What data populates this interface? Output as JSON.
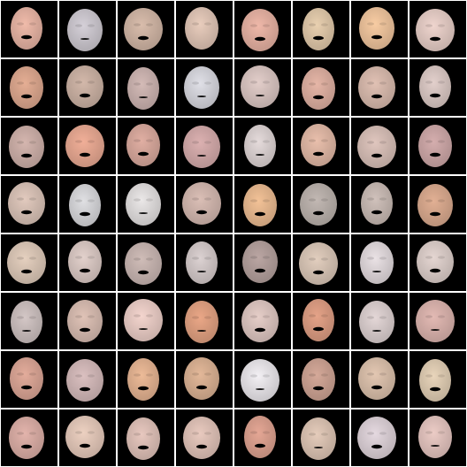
{
  "grid": {
    "columns": 8,
    "rows": 8,
    "background_color": "#000000",
    "separator_color": "#ffffff",
    "tiles": [
      {
        "skin": "#e2b0a0",
        "mouth": "open"
      },
      {
        "skin": "#c9c4cc",
        "mouth": "closed"
      },
      {
        "skin": "#cdb2a2",
        "mouth": "open"
      },
      {
        "skin": "#dcc1b2",
        "mouth": "none"
      },
      {
        "skin": "#e1ae9f",
        "mouth": "open"
      },
      {
        "skin": "#dcc4a6",
        "mouth": "open"
      },
      {
        "skin": "#eac09a",
        "mouth": "open"
      },
      {
        "skin": "#e1c9c2",
        "mouth": "open"
      },
      {
        "skin": "#d8a48c",
        "mouth": "open"
      },
      {
        "skin": "#c7aea0",
        "mouth": "open"
      },
      {
        "skin": "#c8b0ad",
        "mouth": "closed"
      },
      {
        "skin": "#d3d3da",
        "mouth": "closed"
      },
      {
        "skin": "#d6c2bf",
        "mouth": "closed"
      },
      {
        "skin": "#d9ac9e",
        "mouth": "open"
      },
      {
        "skin": "#d4b6aa",
        "mouth": "open"
      },
      {
        "skin": "#d6c4c0",
        "mouth": "open"
      },
      {
        "skin": "#c9aca5",
        "mouth": "open"
      },
      {
        "skin": "#e3a58f",
        "mouth": "open"
      },
      {
        "skin": "#d4a59a",
        "mouth": "open"
      },
      {
        "skin": "#d0a7a7",
        "mouth": "closed"
      },
      {
        "skin": "#d8cfcf",
        "mouth": "closed"
      },
      {
        "skin": "#dcb4a2",
        "mouth": "open"
      },
      {
        "skin": "#d3bbb3",
        "mouth": "open"
      },
      {
        "skin": "#c9a4a4",
        "mouth": "open"
      },
      {
        "skin": "#d5bfb3",
        "mouth": "open"
      },
      {
        "skin": "#d3d3d6",
        "mouth": "open"
      },
      {
        "skin": "#dedbdb",
        "mouth": "closed"
      },
      {
        "skin": "#cfb4ac",
        "mouth": "open"
      },
      {
        "skin": "#e5b78e",
        "mouth": "open"
      },
      {
        "skin": "#b7aea9",
        "mouth": "open"
      },
      {
        "skin": "#c4b6b0",
        "mouth": "open"
      },
      {
        "skin": "#d5a68c",
        "mouth": "open"
      },
      {
        "skin": "#d8c4b4",
        "mouth": "open"
      },
      {
        "skin": "#d6c5c0",
        "mouth": "open"
      },
      {
        "skin": "#c4b2ae",
        "mouth": "open"
      },
      {
        "skin": "#d0c6c6",
        "mouth": "closed"
      },
      {
        "skin": "#b09d9a",
        "mouth": "open"
      },
      {
        "skin": "#d5c2b3",
        "mouth": "open"
      },
      {
        "skin": "#ddd5d8",
        "mouth": "closed"
      },
      {
        "skin": "#d8cac6",
        "mouth": "open"
      },
      {
        "skin": "#c8bcbb",
        "mouth": "closed"
      },
      {
        "skin": "#d3b8ad",
        "mouth": "open"
      },
      {
        "skin": "#e6c9c2",
        "mouth": "closed"
      },
      {
        "skin": "#dd9e7f",
        "mouth": "closed"
      },
      {
        "skin": "#d9c2bd",
        "mouth": "open"
      },
      {
        "skin": "#d89a80",
        "mouth": "open"
      },
      {
        "skin": "#d7cbcb",
        "mouth": "closed"
      },
      {
        "skin": "#d6afaa",
        "mouth": "closed"
      },
      {
        "skin": "#d6a292",
        "mouth": "open"
      },
      {
        "skin": "#cfb5b5",
        "mouth": "open"
      },
      {
        "skin": "#e0b08f",
        "mouth": "open"
      },
      {
        "skin": "#d6ae90",
        "mouth": "open"
      },
      {
        "skin": "#e5e2e6",
        "mouth": "closed"
      },
      {
        "skin": "#c99f90",
        "mouth": "open"
      },
      {
        "skin": "#d6bca8",
        "mouth": "open"
      },
      {
        "skin": "#dcc9b0",
        "mouth": "open"
      },
      {
        "skin": "#d6aaa2",
        "mouth": "open"
      },
      {
        "skin": "#e0c5b6",
        "mouth": "open"
      },
      {
        "skin": "#dbbdb4",
        "mouth": "open"
      },
      {
        "skin": "#dcbfb4",
        "mouth": "open"
      },
      {
        "skin": "#d89e8d",
        "mouth": "open"
      },
      {
        "skin": "#d8c0b0",
        "mouth": "closed"
      },
      {
        "skin": "#d8cdd3",
        "mouth": "open"
      },
      {
        "skin": "#dfc0bb",
        "mouth": "closed"
      }
    ]
  }
}
